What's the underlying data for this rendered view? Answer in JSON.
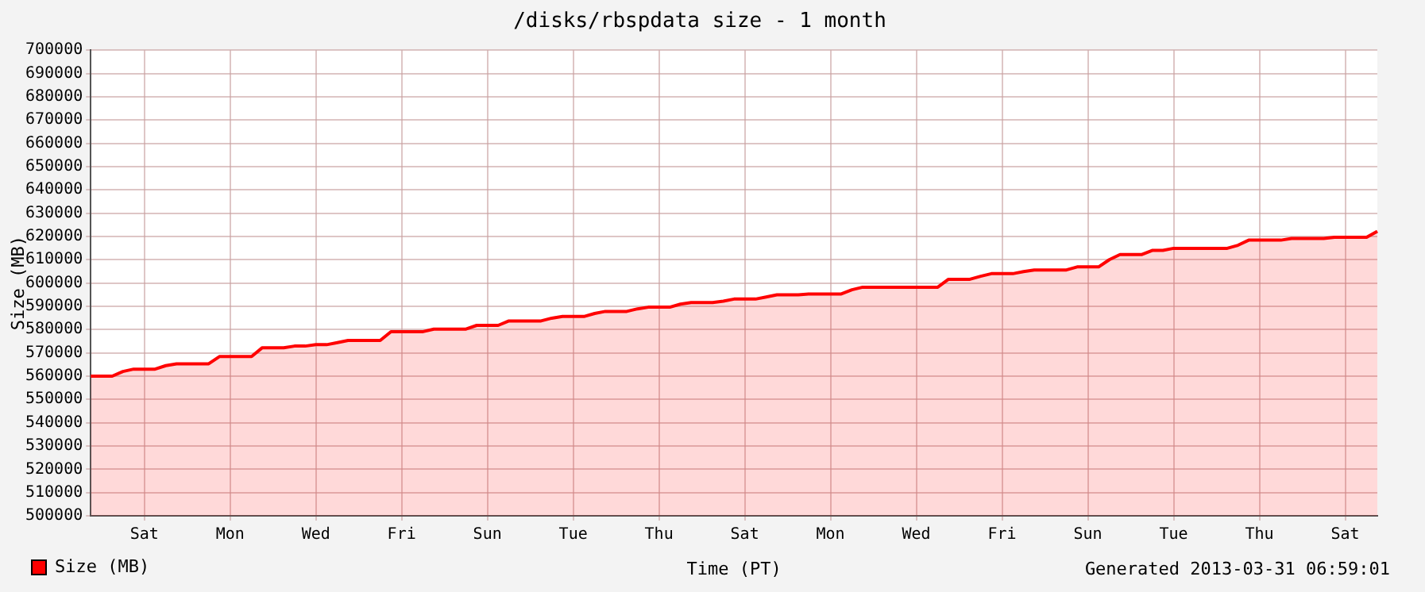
{
  "chart_data": {
    "type": "area",
    "title": "/disks/rbspdata size - 1 month",
    "xlabel": "Time (PT)",
    "ylabel": "Size (MB)",
    "annotations": [
      "Generated 2013-03-31 06:59:01"
    ],
    "categories": [
      null,
      null,
      null,
      null,
      null,
      "Sat",
      null,
      null,
      null,
      null,
      null,
      null,
      null,
      "Mon",
      null,
      null,
      null,
      null,
      null,
      null,
      null,
      "Wed",
      null,
      null,
      null,
      null,
      null,
      null,
      null,
      "Fri",
      null,
      null,
      null,
      null,
      null,
      null,
      null,
      "Sun",
      null,
      null,
      null,
      null,
      null,
      null,
      null,
      "Tue",
      null,
      null,
      null,
      null,
      null,
      null,
      null,
      "Thu",
      null,
      null,
      null,
      null,
      null,
      null,
      null,
      "Sat",
      null,
      null,
      null,
      null,
      null,
      null,
      null,
      "Mon",
      null,
      null,
      null,
      null,
      null,
      null,
      null,
      "Wed",
      null,
      null,
      null,
      null,
      null,
      null,
      null,
      "Fri",
      null,
      null,
      null,
      null,
      null,
      null,
      null,
      "Sun",
      null,
      null,
      null,
      null,
      null,
      null,
      null,
      "Tue",
      null,
      null,
      null,
      null,
      null,
      null,
      null,
      "Thu",
      null,
      null,
      null,
      null,
      null,
      null,
      null,
      "Sat",
      null,
      null,
      null
    ],
    "series": [
      {
        "name": "Size (MB)",
        "color": "#ff0000",
        "values": [
          560000,
          560000,
          560000,
          562000,
          563000,
          563000,
          563000,
          564500,
          565300,
          565300,
          565300,
          565300,
          568400,
          568400,
          568400,
          568400,
          572200,
          572200,
          572200,
          572900,
          572900,
          573500,
          573500,
          574400,
          575300,
          575300,
          575300,
          575300,
          579100,
          579100,
          579100,
          579100,
          580200,
          580200,
          580200,
          580200,
          581800,
          581800,
          581800,
          583700,
          583700,
          583700,
          583700,
          584900,
          585600,
          585600,
          585600,
          586900,
          587800,
          587800,
          587800,
          588900,
          589600,
          589600,
          589600,
          590900,
          591600,
          591600,
          591600,
          592200,
          593100,
          593100,
          593100,
          594000,
          594900,
          594900,
          594900,
          595300,
          595300,
          595300,
          595300,
          597100,
          598200,
          598200,
          598200,
          598200,
          598200,
          598200,
          598200,
          598200,
          601600,
          601600,
          601600,
          602900,
          604000,
          604000,
          604000,
          604900,
          605600,
          605600,
          605600,
          605600,
          606900,
          606900,
          606900,
          610000,
          612200,
          612200,
          612200,
          614000,
          614000,
          614900,
          614900,
          614900,
          614900,
          614900,
          614900,
          616200,
          618400,
          618400,
          618400,
          618400,
          619100,
          619100,
          619100,
          619100,
          619600,
          619600,
          619600,
          619600,
          622200
        ]
      }
    ],
    "ylim": [
      500000,
      700000
    ],
    "yticks": [
      500000,
      510000,
      520000,
      530000,
      540000,
      550000,
      560000,
      570000,
      580000,
      590000,
      600000,
      610000,
      620000,
      630000,
      640000,
      650000,
      660000,
      670000,
      680000,
      690000,
      700000
    ],
    "grid": true,
    "legend": "bottom left"
  }
}
